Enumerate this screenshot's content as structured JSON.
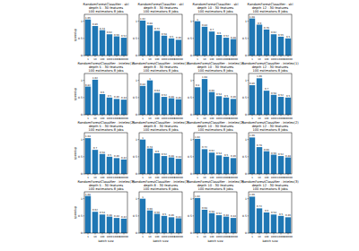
{
  "chart_data": [
    {
      "type": "bar",
      "title": "RandomForestClassifier - skl\ndepth 5 - 30 features\n100 estimators 8 jobs",
      "categories": [
        "1",
        "10",
        "100",
        "1000",
        "10000",
        "100000"
      ],
      "values": [
        1.05,
        0.86,
        0.74,
        0.62,
        0.56,
        0.52
      ],
      "color": "#1f77b4",
      "ylim": [
        0,
        1.2
      ],
      "yticks": [
        0,
        0.5,
        1
      ],
      "data_labels": true,
      "y_label": "speedup"
    },
    {
      "type": "bar",
      "title": "RandomForestClassifier - skl\ndepth 8 - 30 features\n100 estimators 8 jobs",
      "categories": [
        "1",
        "10",
        "100",
        "1000",
        "10000",
        "100000"
      ],
      "values": [
        1.02,
        0.88,
        0.72,
        0.58,
        0.5,
        0.46
      ],
      "color": "#1f77b4",
      "ylim": [
        0,
        1.2
      ],
      "yticks": [
        0,
        0.5,
        1
      ],
      "data_labels": true
    },
    {
      "type": "bar",
      "title": "RandomForestClassifier - skl\ndepth 10 - 30 features\n100 estimators 8 jobs",
      "categories": [
        "1",
        "10",
        "100",
        "1000",
        "10000",
        "100000"
      ],
      "values": [
        1.0,
        0.84,
        0.7,
        0.6,
        0.52,
        0.48
      ],
      "color": "#1f77b4",
      "ylim": [
        0,
        1.2
      ],
      "yticks": [
        0,
        0.5,
        1
      ],
      "data_labels": true
    },
    {
      "type": "bar",
      "title": "RandomForestClassifier - skl\ndepth 12 - 30 features\n100 estimators 8 jobs",
      "categories": [
        "1",
        "10",
        "100",
        "1000",
        "10000",
        "100000"
      ],
      "values": [
        1.08,
        0.9,
        0.76,
        0.62,
        0.55,
        0.5
      ],
      "color": "#1f77b4",
      "ylim": [
        0,
        1.2
      ],
      "yticks": [
        0,
        0.5,
        1
      ],
      "data_labels": true
    },
    {
      "type": "bar",
      "title": "RandomForestClassifier - intelex(1)\ndepth 5 - 30 features\n100 estimators 8 jobs",
      "categories": [
        "1",
        "10",
        "100",
        "1000",
        "10000",
        "100000"
      ],
      "values": [
        0.82,
        1.02,
        0.6,
        0.5,
        0.46,
        0.44
      ],
      "color": "#1f77b4",
      "ylim": [
        0,
        1.2
      ],
      "yticks": [
        0,
        0.5,
        1
      ],
      "data_labels": true,
      "y_label": "speedup"
    },
    {
      "type": "bar",
      "title": "RandomForestClassifier - intelex(1)\ndepth 8 - 30 features\n100 estimators 8 jobs",
      "categories": [
        "1",
        "10",
        "100",
        "1000",
        "10000",
        "100000"
      ],
      "values": [
        0.84,
        1.0,
        0.64,
        0.52,
        0.48,
        0.45
      ],
      "color": "#1f77b4",
      "ylim": [
        0,
        1.2
      ],
      "yticks": [
        0,
        0.5,
        1
      ],
      "data_labels": true
    },
    {
      "type": "bar",
      "title": "RandomForestClassifier - intelex(1)\ndepth 10 - 30 features\n100 estimators 8 jobs",
      "categories": [
        "1",
        "10",
        "100",
        "1000",
        "10000",
        "100000"
      ],
      "values": [
        0.8,
        1.04,
        0.66,
        0.54,
        0.5,
        0.46
      ],
      "color": "#1f77b4",
      "ylim": [
        0,
        1.2
      ],
      "yticks": [
        0,
        0.5,
        1
      ],
      "data_labels": true
    },
    {
      "type": "bar",
      "title": "RandomForestClassifier - intelex(1)\ndepth 12 - 30 features\n100 estimators 8 jobs",
      "categories": [
        "1",
        "10",
        "100",
        "1000",
        "10000",
        "100000"
      ],
      "values": [
        0.86,
        1.06,
        0.7,
        0.58,
        0.52,
        0.5
      ],
      "color": "#1f77b4",
      "ylim": [
        0,
        1.2
      ],
      "yticks": [
        0,
        0.5,
        1
      ],
      "data_labels": true
    },
    {
      "type": "bar",
      "title": "RandomForestClassifier - intelex(2)\ndepth 5 - 30 features\n100 estimators 8 jobs",
      "categories": [
        "1",
        "10",
        "100",
        "1000",
        "10000",
        "100000"
      ],
      "values": [
        1.04,
        0.7,
        0.58,
        0.5,
        0.46,
        0.42
      ],
      "color": "#1f77b4",
      "ylim": [
        0,
        1.2
      ],
      "yticks": [
        0,
        0.5,
        1
      ],
      "data_labels": true,
      "y_label": "speedup"
    },
    {
      "type": "bar",
      "title": "RandomForestClassifier - intelex(2)\ndepth 8 - 30 features\n100 estimators 8 jobs",
      "categories": [
        "1",
        "10",
        "100",
        "1000",
        "10000",
        "100000"
      ],
      "values": [
        1.0,
        0.74,
        0.6,
        0.52,
        0.48,
        0.44
      ],
      "color": "#1f77b4",
      "ylim": [
        0,
        1.2
      ],
      "yticks": [
        0,
        0.5,
        1
      ],
      "data_labels": true
    },
    {
      "type": "bar",
      "title": "RandomForestClassifier - intelex(2)\ndepth 10 - 30 features\n100 estimators 8 jobs",
      "categories": [
        "1",
        "10",
        "100",
        "1000",
        "10000",
        "100000"
      ],
      "values": [
        1.02,
        0.72,
        0.62,
        0.54,
        0.5,
        0.46
      ],
      "color": "#1f77b4",
      "ylim": [
        0,
        1.2
      ],
      "yticks": [
        0,
        0.5,
        1
      ],
      "data_labels": true
    },
    {
      "type": "bar",
      "title": "RandomForestClassifier - intelex(2)\ndepth 12 - 30 features\n100 estimators 8 jobs",
      "categories": [
        "1",
        "10",
        "100",
        "1000",
        "10000",
        "100000"
      ],
      "values": [
        1.06,
        0.78,
        0.66,
        0.56,
        0.52,
        0.48
      ],
      "color": "#1f77b4",
      "ylim": [
        0,
        1.2
      ],
      "yticks": [
        0,
        0.5,
        1
      ],
      "data_labels": true
    },
    {
      "type": "bar",
      "title": "RandomForestClassifier - intelex(3)\ndepth 5 - 30 features\n100 estimators 8 jobs",
      "categories": [
        "1",
        "10",
        "100",
        "1000",
        "10000",
        "100000"
      ],
      "values": [
        1.08,
        0.62,
        0.54,
        0.48,
        0.44,
        0.42
      ],
      "color": "#1f77b4",
      "ylim": [
        0,
        1.2
      ],
      "yticks": [
        0,
        0.5,
        1
      ],
      "data_labels": true,
      "x_label": "batch size",
      "y_label": "speedup"
    },
    {
      "type": "bar",
      "title": "RandomForestClassifier - intelex(3)\ndepth 8 - 30 features\n100 estimators 8 jobs",
      "categories": [
        "1",
        "10",
        "100",
        "1000",
        "10000",
        "100000"
      ],
      "values": [
        1.0,
        0.66,
        0.56,
        0.5,
        0.46,
        0.43
      ],
      "color": "#1f77b4",
      "ylim": [
        0,
        1.2
      ],
      "yticks": [
        0,
        0.5,
        1
      ],
      "data_labels": true,
      "x_label": "batch size"
    },
    {
      "type": "bar",
      "title": "RandomForestClassifier - intelex(3)\ndepth 10 - 30 features\n100 estimators 8 jobs",
      "categories": [
        "1",
        "10",
        "100",
        "1000",
        "10000",
        "100000"
      ],
      "values": [
        1.02,
        0.68,
        0.58,
        0.52,
        0.48,
        0.44
      ],
      "color": "#1f77b4",
      "ylim": [
        0,
        1.2
      ],
      "yticks": [
        0,
        0.5,
        1
      ],
      "data_labels": true,
      "x_label": "batch size"
    },
    {
      "type": "bar",
      "title": "RandomForestClassifier - intelex(3)\ndepth 12 - 30 features\n100 estimators 8 jobs",
      "categories": [
        "1",
        "10",
        "100",
        "1000",
        "10000",
        "100000"
      ],
      "values": [
        1.06,
        0.72,
        0.6,
        0.54,
        0.5,
        0.46
      ],
      "color": "#1f77b4",
      "ylim": [
        0,
        1.2
      ],
      "yticks": [
        0,
        0.5,
        1
      ],
      "data_labels": true,
      "x_label": "batch size"
    }
  ]
}
